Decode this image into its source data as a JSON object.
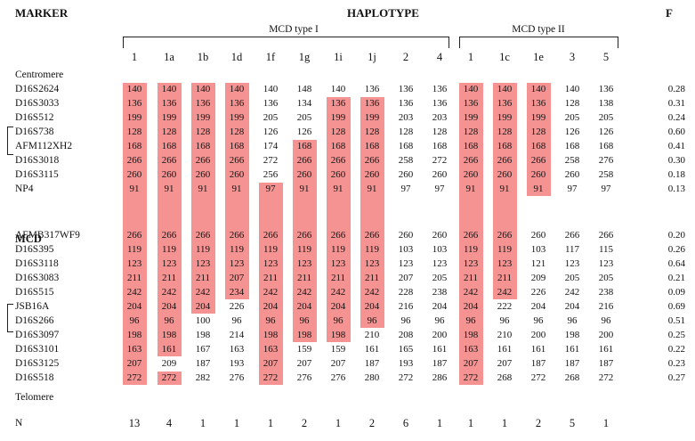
{
  "header": {
    "marker": "MARKER",
    "haplotype": "HAPLOTYPE",
    "f": "F"
  },
  "groups": {
    "type1": "MCD type I",
    "type2": "MCD type II"
  },
  "highlight_color": "#f59393",
  "haplotypes": [
    "1",
    "1a",
    "1b",
    "1d",
    "1f",
    "1g",
    "1i",
    "1j",
    "2",
    "4",
    "1",
    "1c",
    "1e",
    "3",
    "5"
  ],
  "centromere": "Centromere",
  "mcd": "MCD",
  "telomere": "Telomere",
  "n_label": "N",
  "n_values": [
    "13",
    "4",
    "1",
    "1",
    "1",
    "2",
    "1",
    "2",
    "6",
    "1",
    "1",
    "1",
    "2",
    "5",
    "1"
  ],
  "rows": [
    {
      "marker": "D16S2624",
      "values": [
        "140",
        "140",
        "140",
        "140",
        "140",
        "148",
        "140",
        "136",
        "136",
        "136",
        "140",
        "140",
        "140",
        "140",
        "136"
      ],
      "f": "0.28"
    },
    {
      "marker": "D16S3033",
      "values": [
        "136",
        "136",
        "136",
        "136",
        "136",
        "134",
        "136",
        "136",
        "136",
        "136",
        "136",
        "136",
        "136",
        "128",
        "138"
      ],
      "f": "0.31"
    },
    {
      "marker": "D16S512",
      "values": [
        "199",
        "199",
        "199",
        "199",
        "205",
        "205",
        "199",
        "199",
        "203",
        "203",
        "199",
        "199",
        "199",
        "205",
        "205"
      ],
      "f": "0.24"
    },
    {
      "marker": "D16S738",
      "values": [
        "128",
        "128",
        "128",
        "128",
        "126",
        "126",
        "128",
        "128",
        "128",
        "128",
        "128",
        "128",
        "128",
        "126",
        "126"
      ],
      "f": "0.60"
    },
    {
      "marker": "AFM112XH2",
      "values": [
        "168",
        "168",
        "168",
        "168",
        "174",
        "168",
        "168",
        "168",
        "168",
        "168",
        "168",
        "168",
        "168",
        "168",
        "168"
      ],
      "f": "0.41"
    },
    {
      "marker": "D16S3018",
      "values": [
        "266",
        "266",
        "266",
        "266",
        "272",
        "266",
        "266",
        "266",
        "258",
        "272",
        "266",
        "266",
        "266",
        "258",
        "276"
      ],
      "f": "0.30"
    },
    {
      "marker": "D16S3115",
      "values": [
        "260",
        "260",
        "260",
        "260",
        "256",
        "260",
        "260",
        "260",
        "260",
        "260",
        "260",
        "260",
        "260",
        "260",
        "258"
      ],
      "f": "0.18"
    },
    {
      "marker": "NP4",
      "values": [
        "91",
        "91",
        "91",
        "91",
        "97",
        "91",
        "91",
        "91",
        "97",
        "97",
        "91",
        "91",
        "91",
        "97",
        "97"
      ],
      "f": "0.13"
    },
    {
      "marker": "AFMB317WF9",
      "values": [
        "266",
        "266",
        "266",
        "266",
        "266",
        "266",
        "266",
        "266",
        "260",
        "260",
        "266",
        "266",
        "260",
        "266",
        "266"
      ],
      "f": "0.20"
    },
    {
      "marker": "D16S395",
      "values": [
        "119",
        "119",
        "119",
        "119",
        "119",
        "119",
        "119",
        "119",
        "103",
        "103",
        "119",
        "119",
        "103",
        "117",
        "115"
      ],
      "f": "0.26"
    },
    {
      "marker": "D16S3118",
      "values": [
        "123",
        "123",
        "123",
        "123",
        "123",
        "123",
        "123",
        "123",
        "123",
        "123",
        "123",
        "123",
        "121",
        "123",
        "123"
      ],
      "f": "0.64"
    },
    {
      "marker": "D16S3083",
      "values": [
        "211",
        "211",
        "211",
        "207",
        "211",
        "211",
        "211",
        "211",
        "207",
        "205",
        "211",
        "211",
        "209",
        "205",
        "205"
      ],
      "f": "0.21"
    },
    {
      "marker": "D16S515",
      "values": [
        "242",
        "242",
        "242",
        "234",
        "242",
        "242",
        "242",
        "242",
        "228",
        "238",
        "242",
        "242",
        "226",
        "242",
        "238"
      ],
      "f": "0.09"
    },
    {
      "marker": "JSB16A",
      "values": [
        "204",
        "204",
        "204",
        "226",
        "204",
        "204",
        "204",
        "204",
        "216",
        "204",
        "204",
        "222",
        "204",
        "204",
        "216"
      ],
      "f": "0.69"
    },
    {
      "marker": "D16S266",
      "values": [
        "96",
        "96",
        "100",
        "96",
        "96",
        "96",
        "96",
        "96",
        "96",
        "96",
        "96",
        "96",
        "96",
        "96",
        "96"
      ],
      "f": "0.51"
    },
    {
      "marker": "D16S3097",
      "values": [
        "198",
        "198",
        "198",
        "214",
        "198",
        "198",
        "198",
        "210",
        "208",
        "200",
        "198",
        "210",
        "200",
        "198",
        "200"
      ],
      "f": "0.25"
    },
    {
      "marker": "D16S3101",
      "values": [
        "163",
        "161",
        "167",
        "163",
        "163",
        "159",
        "159",
        "161",
        "165",
        "161",
        "163",
        "161",
        "161",
        "161",
        "161"
      ],
      "f": "0.22"
    },
    {
      "marker": "D16S3125",
      "values": [
        "207",
        "209",
        "187",
        "193",
        "207",
        "207",
        "207",
        "187",
        "193",
        "187",
        "207",
        "207",
        "187",
        "187",
        "187"
      ],
      "f": "0.23"
    },
    {
      "marker": "D16S518",
      "values": [
        "272",
        "272",
        "282",
        "276",
        "272",
        "276",
        "276",
        "280",
        "272",
        "286",
        "272",
        "268",
        "272",
        "268",
        "272"
      ],
      "f": "0.27"
    }
  ]
}
